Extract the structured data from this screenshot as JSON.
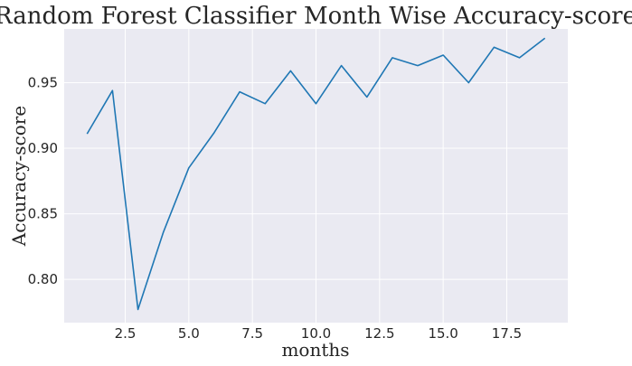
{
  "chart_data": {
    "type": "line",
    "title": "Random Forest Classifier Month Wise Accuracy-score",
    "xlabel": "months",
    "ylabel": "Accuracy-score",
    "xlim": [
      0.1,
      19.9
    ],
    "ylim": [
      0.767,
      0.991
    ],
    "xticks": [
      2.5,
      5.0,
      7.5,
      10.0,
      12.5,
      15.0,
      17.5
    ],
    "xtick_labels": [
      "2.5",
      "5.0",
      "7.5",
      "10.0",
      "12.5",
      "15.0",
      "17.5"
    ],
    "yticks": [
      0.8,
      0.85,
      0.9,
      0.95
    ],
    "ytick_labels": [
      "0.80",
      "0.85",
      "0.90",
      "0.95"
    ],
    "grid": true,
    "legend": "none",
    "colors": {
      "line": "#1f77b4",
      "plot_background": "#eaeaf2",
      "grid": "#ffffff"
    },
    "series": [
      {
        "x": [
          1,
          2,
          3,
          4,
          5,
          6,
          7,
          8,
          9,
          10,
          11,
          12,
          13,
          14,
          15,
          16,
          17,
          18,
          19
        ],
        "y": [
          0.911,
          0.944,
          0.777,
          0.836,
          0.885,
          0.912,
          0.943,
          0.934,
          0.959,
          0.934,
          0.963,
          0.939,
          0.969,
          0.963,
          0.971,
          0.95,
          0.977,
          0.969,
          0.984
        ]
      }
    ]
  }
}
